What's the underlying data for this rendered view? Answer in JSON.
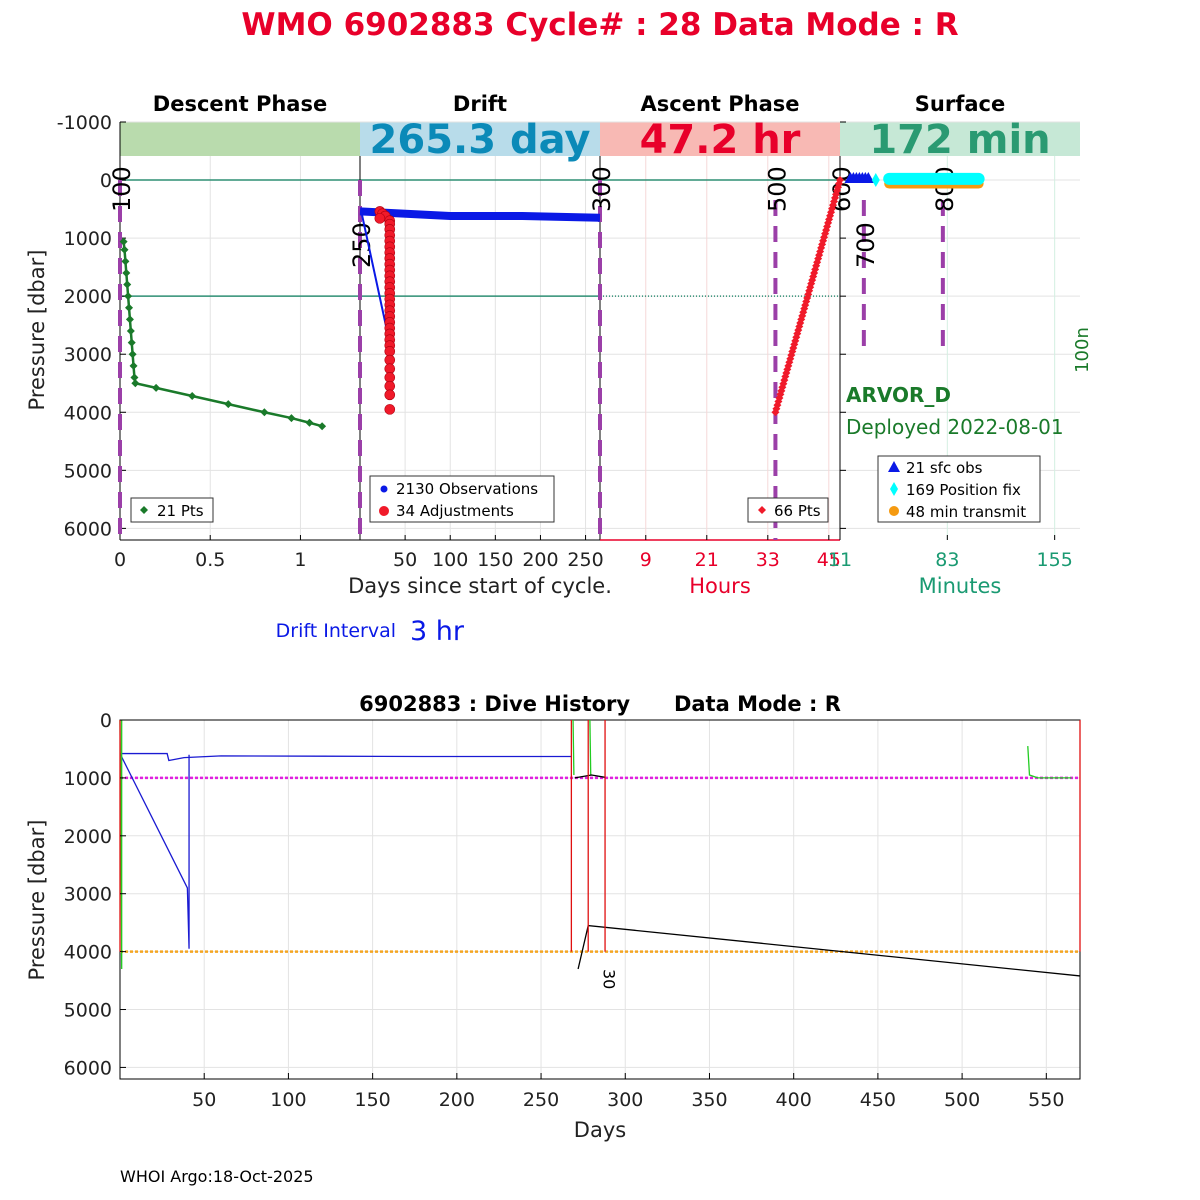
{
  "header": {
    "title": "WMO 6902883   Cycle# : 28   Data Mode : R",
    "title_color": "#e8002a"
  },
  "footer": {
    "credit": "WHOI Argo:18-Oct-2025"
  },
  "chart_data": [
    {
      "id": "cycle-profile",
      "type": "scatter",
      "ylabel": "Pressure [dbar]",
      "ylim": [
        6200,
        -1000
      ],
      "yticks": [
        -1000,
        0,
        1000,
        2000,
        3000,
        4000,
        5000,
        6000
      ],
      "grid": true,
      "reference_lines": [
        0,
        2000
      ],
      "phases": {
        "descent": {
          "title": "Descent Phase",
          "band_color": "#b9dbad",
          "band_text": "",
          "xlabel": "Days since start of cycle.",
          "xlim": [
            0,
            1.33
          ],
          "xticks": [
            0,
            0.5,
            1
          ],
          "xtick_labels": [
            "0",
            "0.5",
            "1"
          ],
          "legend": "21 Pts",
          "series_color": "#1a7a2a",
          "points": [
            [
              0.02,
              1060
            ],
            [
              0.025,
              1200
            ],
            [
              0.03,
              1400
            ],
            [
              0.035,
              1600
            ],
            [
              0.04,
              1800
            ],
            [
              0.045,
              2000
            ],
            [
              0.05,
              2200
            ],
            [
              0.055,
              2400
            ],
            [
              0.06,
              2600
            ],
            [
              0.065,
              2800
            ],
            [
              0.07,
              3000
            ],
            [
              0.075,
              3200
            ],
            [
              0.08,
              3400
            ],
            [
              0.085,
              3500
            ],
            [
              0.2,
              3580
            ],
            [
              0.4,
              3720
            ],
            [
              0.6,
              3860
            ],
            [
              0.8,
              4000
            ],
            [
              0.95,
              4100
            ],
            [
              1.05,
              4180
            ],
            [
              1.12,
              4240
            ]
          ],
          "cycle_marks": [
            {
              "x": 0,
              "label": "100"
            }
          ]
        },
        "drift": {
          "title": "Drift",
          "band_color": "#b8dcea",
          "band_text": "265.3 day",
          "band_text_color": "#0b8ab8",
          "xlim": [
            0,
            266
          ],
          "xticks": [
            50,
            100,
            150,
            200,
            250
          ],
          "xtick_labels": [
            "50",
            "100",
            "150",
            "200",
            "250"
          ],
          "legend_obs": "2130 Observations",
          "legend_adj": "34 Adjustments",
          "obs_color": "#0a19e6",
          "adj_color": "#f01a2a",
          "drift_pressure": 620,
          "drift_end_pressure": 650,
          "adjustment_depths": [
            540,
            580,
            620,
            660,
            700,
            760,
            850,
            950,
            1050,
            1150,
            1250,
            1350,
            1450,
            1550,
            1650,
            1750,
            1850,
            1950,
            2050,
            2150,
            2250,
            2350,
            2450,
            2550,
            2650,
            2750,
            2850,
            2950,
            3100,
            3250,
            3400,
            3550,
            3700,
            3950
          ],
          "cycle_marks": [
            {
              "x": 0,
              "label": "250"
            },
            {
              "x": 266,
              "label": "300"
            }
          ]
        },
        "ascent": {
          "title": "Ascent Phase",
          "band_color": "#f8b9b4",
          "band_text": "47.2 hr",
          "band_text_color": "#e8002a",
          "xlabel": "Hours",
          "xlabel_color": "#e8002a",
          "xlim": [
            0,
            47.2
          ],
          "xticks": [
            9,
            21,
            33,
            45
          ],
          "xtick_labels": [
            "9",
            "21",
            "33",
            "45"
          ],
          "legend": "66 Pts",
          "series_color": "#f01a2a",
          "start": [
            34.5,
            4000
          ],
          "end": [
            47.2,
            0
          ],
          "cycle_marks": [
            {
              "x": 34.5,
              "label": "500"
            },
            {
              "x": 47.2,
              "label": "600"
            }
          ]
        },
        "surface": {
          "title": "Surface",
          "band_color": "#c6e8d6",
          "band_text": "172 min",
          "band_text_color": "#2a9a72",
          "xlabel": "Minutes",
          "xlabel_color": "#1a9a72",
          "xlim": [
            11,
            172
          ],
          "xticks": [
            11,
            83,
            155
          ],
          "xtick_labels": [
            "11",
            "83",
            "155"
          ],
          "legend_sfc": "21 sfc obs",
          "legend_fix": "169 Position fix",
          "legend_tx": "48 min transmit",
          "sfc_color": "#0a19e6",
          "fix_color": "#00ffff",
          "tx_color": "#f59a10",
          "sfc_obs_minutes": [
            18,
            20,
            22,
            24,
            26,
            28,
            30
          ],
          "fix_range": [
            44,
            104
          ],
          "tx_range": [
            44,
            104
          ],
          "cycle_marks": [
            {
              "x": 27,
              "label": "700"
            },
            {
              "x": 80,
              "label": "800"
            }
          ],
          "float_model": "ARVOR_D",
          "deployed": "Deployed 2022-08-01",
          "side_label": "100n"
        }
      },
      "drift_interval_label": "Drift Interval",
      "drift_interval_value": "3 hr"
    },
    {
      "id": "dive-history",
      "type": "line",
      "title": "6902883 : Dive History      Data Mode : R",
      "xlabel": "Days",
      "ylabel": "Pressure [dbar]",
      "xlim": [
        0,
        570
      ],
      "ylim": [
        6200,
        0
      ],
      "xticks": [
        50,
        100,
        150,
        200,
        250,
        300,
        350,
        400,
        450,
        500,
        550
      ],
      "yticks": [
        0,
        1000,
        2000,
        3000,
        4000,
        5000,
        6000
      ],
      "grid": true,
      "reference_lines": [
        {
          "y": 1000,
          "color": "#e020e0"
        },
        {
          "y": 4000,
          "color": "#f5a623"
        }
      ],
      "annotations": [
        {
          "x": 287,
          "y": 4300,
          "text": "30"
        }
      ],
      "series": [
        {
          "color": "#1a1ad2",
          "points": [
            [
              0,
              580
            ],
            [
              10,
              580
            ],
            [
              20,
              580
            ],
            [
              28,
              580
            ],
            [
              29,
              700
            ],
            [
              38,
              650
            ],
            [
              60,
              620
            ],
            [
              120,
              625
            ],
            [
              180,
              630
            ],
            [
              230,
              630
            ],
            [
              268,
              630
            ]
          ]
        },
        {
          "color": "#1a1ad2",
          "points": [
            [
              0,
              580
            ],
            [
              40,
              2900
            ],
            [
              41,
              3950
            ],
            [
              41,
              600
            ]
          ]
        },
        {
          "color": "#22cc22",
          "points": [
            [
              0,
              0
            ],
            [
              0.5,
              1700
            ],
            [
              1,
              4300
            ],
            [
              1,
              0
            ]
          ]
        },
        {
          "color": "#22cc22",
          "points": [
            [
              269,
              0
            ],
            [
              269.5,
              950
            ]
          ]
        },
        {
          "color": "#22cc22",
          "points": [
            [
              279,
              0
            ],
            [
              279.5,
              950
            ]
          ]
        },
        {
          "color": "#22cc22",
          "points": [
            [
              539,
              450
            ],
            [
              540,
              950
            ],
            [
              545,
              1000
            ],
            [
              565,
              1000
            ]
          ]
        },
        {
          "color": "#000000",
          "points": [
            [
              272,
              4300
            ],
            [
              278,
              3550
            ],
            [
              570,
              4420
            ]
          ]
        },
        {
          "color": "#000000",
          "points": [
            [
              270,
              1000
            ],
            [
              280,
              950
            ],
            [
              288,
              990
            ]
          ]
        },
        {
          "color": "#e01010",
          "points": [
            [
              0,
              0
            ],
            [
              0,
              4000
            ]
          ]
        },
        {
          "color": "#e01010",
          "points": [
            [
              268,
              0
            ],
            [
              268,
              4000
            ]
          ]
        },
        {
          "color": "#e01010",
          "points": [
            [
              278,
              4000
            ],
            [
              278,
              0
            ]
          ]
        },
        {
          "color": "#e01010",
          "points": [
            [
              288,
              0
            ],
            [
              288,
              4000
            ]
          ]
        },
        {
          "color": "#e01010",
          "points": [
            [
              570,
              0
            ],
            [
              570,
              4000
            ]
          ]
        }
      ]
    }
  ]
}
